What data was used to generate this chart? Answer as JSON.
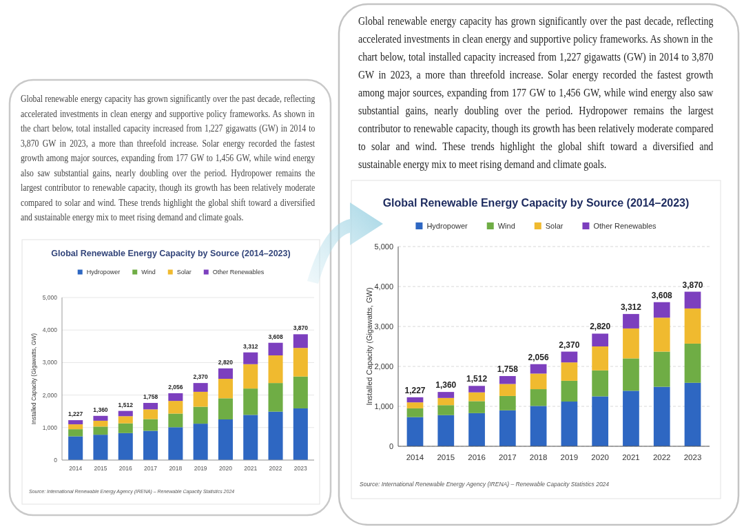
{
  "chart_data": [
    {
      "type": "bar",
      "title": "Global Renewable Energy Capacity by Source (2014–2023)",
      "ylabel": "Installed Capacity (Gigawatts, GW)",
      "categories": [
        "2014",
        "2015",
        "2016",
        "2017",
        "2018",
        "2019",
        "2020",
        "2021",
        "2022",
        "2023"
      ],
      "series": [
        {
          "name": "Hydropower",
          "color": "#2e67c2",
          "values": [
            730,
            780,
            830,
            900,
            1010,
            1120,
            1250,
            1390,
            1490,
            1590
          ]
        },
        {
          "name": "Wind",
          "color": "#6fad45",
          "values": [
            220,
            250,
            300,
            360,
            420,
            520,
            650,
            810,
            880,
            980
          ]
        },
        {
          "name": "Solar",
          "color": "#f0ba2f",
          "values": [
            150,
            180,
            220,
            300,
            390,
            460,
            600,
            750,
            850,
            880
          ]
        },
        {
          "name": "Other Renewables",
          "color": "#7c3fbe",
          "values": [
            127,
            150,
            162,
            198,
            236,
            270,
            320,
            362,
            388,
            420
          ]
        }
      ],
      "stacked": true,
      "totals": [
        "1,227",
        "1,360",
        "1,512",
        "1,758",
        "2,056",
        "2,370",
        "2,820",
        "3,312",
        "3,608",
        "3,870"
      ],
      "ylim": [
        0,
        5000
      ],
      "yticks": [
        0,
        {
          "value": 1000,
          "label": "1,000"
        },
        {
          "value": 2000,
          "label": "2,000"
        },
        {
          "value": 3000,
          "label": "3,000"
        },
        {
          "value": 4000,
          "label": "4,000"
        },
        {
          "value": 5000,
          "label": "5,000"
        }
      ],
      "grid": "y",
      "legend": "top",
      "annotations": [
        "Global renewable energy capacity has grown significantly over the past decade, reflecting accelerated investments in clean energy and supportive policy frameworks. As shown in the chart below, total installed capacity increased from 1,227 gigawatts (GW) in 2014 to 3,870 GW in 2023, a more than threefold increase. Solar energy recorded the fastest growth among major sources, expanding from 177 GW to 1,456 GW, while wind energy also saw substantial gains, nearly doubling over the period. Hydropower remains the largest contributor to renewable capacity, though its growth has been relatively moderate compared to solar and wind. These trends highlight the global shift toward a diversified and sustainable energy mix to meet rising demand and climate goals.",
        "Source: International Renewable Energy Agency (IRENA) – Renewable Capacity Statistics 2024"
      ]
    },
    {
      "type": "bar",
      "title": "Global Renewable Energy Capacity by Source (2014–2023)",
      "ylabel": "Installed Capacity (Gigawatts, GW)",
      "categories": [
        "2014",
        "2015",
        "2016",
        "2017",
        "2018",
        "2019",
        "2020",
        "2021",
        "2022",
        "2023"
      ],
      "series": [
        {
          "name": "Hydropower",
          "color": "#2e67c2",
          "values": [
            730,
            780,
            830,
            900,
            1010,
            1120,
            1250,
            1390,
            1490,
            1590
          ]
        },
        {
          "name": "Wind",
          "color": "#6fad45",
          "values": [
            220,
            250,
            300,
            360,
            420,
            520,
            650,
            810,
            880,
            980
          ]
        },
        {
          "name": "Solar",
          "color": "#f0ba2f",
          "values": [
            150,
            180,
            220,
            300,
            390,
            460,
            600,
            750,
            850,
            880
          ]
        },
        {
          "name": "Other Renewables",
          "color": "#7c3fbe",
          "values": [
            127,
            150,
            162,
            198,
            236,
            270,
            320,
            362,
            388,
            420
          ]
        }
      ],
      "stacked": true,
      "totals": [
        "1,227",
        "1,360",
        "1,512",
        "1,758",
        "2,056",
        "2,370",
        "2,820",
        "3,312",
        "3,608",
        "3,870"
      ],
      "ylim": [
        0,
        5000
      ],
      "yticks": [
        0,
        {
          "value": 1000,
          "label": "1,000"
        },
        {
          "value": 2000,
          "label": "2,000"
        },
        {
          "value": 3000,
          "label": "3,000"
        },
        {
          "value": 4000,
          "label": "4,000"
        },
        {
          "value": 5000,
          "label": "5,000"
        }
      ],
      "grid": "y",
      "legend": "top",
      "annotations": [
        "Global renewable energy capacity has grown significantly over the past decade, reflecting accelerated investments in clean energy and supportive policy frameworks. As shown in the chart below, total installed capacity increased from 1,227 gigawatts (GW) in 2014 to 3,870 GW in 2023, a more than threefold increase. Solar energy recorded the fastest growth among major sources, expanding from 177 GW to 1,456 GW, while wind energy also saw substantial gains, nearly doubling over the period. Hydropower remains the largest contributor to renewable capacity, though its growth has been relatively moderate compared to solar and wind. These trends highlight the global shift toward a diversified and sustainable energy mix to meet rising demand and climate goals.",
        "Source: International Renewable Energy Agency (IRENA) – Renewable Capacity Statistics 2024"
      ]
    }
  ]
}
